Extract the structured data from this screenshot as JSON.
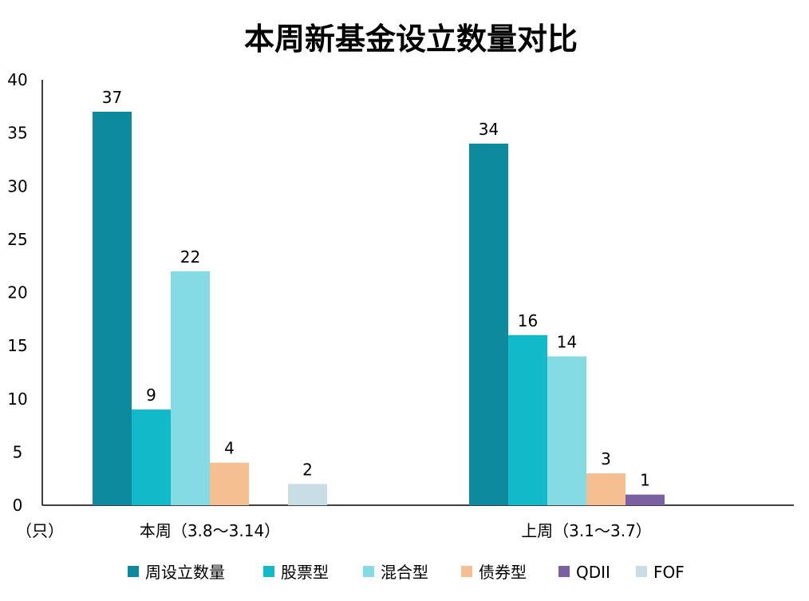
{
  "chart_data": {
    "type": "bar",
    "title": "本周新基金设立数量对比",
    "ylabel": "（只）",
    "ylim": [
      0,
      40
    ],
    "yticks": [
      0,
      5,
      10,
      15,
      20,
      25,
      30,
      35,
      40
    ],
    "grid": false,
    "legend_position": "bottom",
    "categories": [
      "本周（3.8～3.14）",
      "上周（3.1～3.7）"
    ],
    "series": [
      {
        "name": "周设立数量",
        "color": "#0e8a9e",
        "values": [
          37,
          34
        ]
      },
      {
        "name": "股票型",
        "color": "#12b9c9",
        "values": [
          9,
          16
        ]
      },
      {
        "name": "混合型",
        "color": "#84dbe3",
        "values": [
          22,
          14
        ]
      },
      {
        "name": "债券型",
        "color": "#f6bf91",
        "values": [
          4,
          3
        ]
      },
      {
        "name": "QDII",
        "color": "#7a62a0",
        "values": [
          0,
          1
        ]
      },
      {
        "name": "FOF",
        "color": "#c9dde5",
        "values": [
          2,
          0
        ]
      }
    ]
  }
}
